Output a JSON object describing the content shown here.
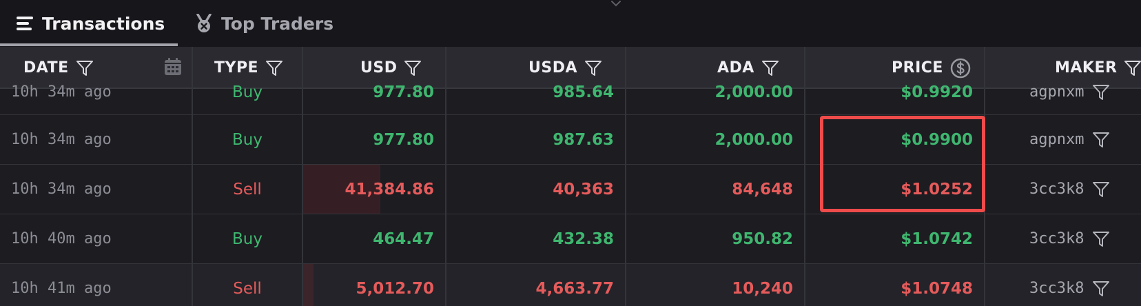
{
  "tabs": [
    {
      "label": "Transactions",
      "icon": "list-icon",
      "active": true
    },
    {
      "label": "Top Traders",
      "icon": "medal-icon",
      "active": false
    }
  ],
  "columns": {
    "date": "DATE",
    "type": "TYPE",
    "usd": "USD",
    "usda": "USDA",
    "ada": "ADA",
    "price": "PRICE",
    "maker": "MAKER"
  },
  "rows": [
    {
      "date": "10h 34m ago",
      "type": "Buy",
      "usd": "977.80",
      "usda": "985.64",
      "ada": "2,000.00",
      "price": "$0.9920",
      "maker": "agpnxm",
      "side": "buy"
    },
    {
      "date": "10h 34m ago",
      "type": "Buy",
      "usd": "977.80",
      "usda": "987.63",
      "ada": "2,000.00",
      "price": "$0.9900",
      "maker": "agpnxm",
      "side": "buy"
    },
    {
      "date": "10h 34m ago",
      "type": "Sell",
      "usd": "41,384.86",
      "usda": "40,363",
      "ada": "84,648",
      "price": "$1.0252",
      "maker": "3cc3k8",
      "side": "sell",
      "usd_bar_fraction": 0.54
    },
    {
      "date": "10h 40m ago",
      "type": "Buy",
      "usd": "464.47",
      "usda": "432.38",
      "ada": "950.82",
      "price": "$1.0742",
      "maker": "3cc3k8",
      "side": "buy"
    },
    {
      "date": "10h 41m ago",
      "type": "Sell",
      "usd": "5,012.70",
      "usda": "4,663.77",
      "ada": "10,240",
      "price": "$1.0748",
      "maker": "3cc3k8",
      "side": "sell",
      "usd_bar_fraction": 0.07
    }
  ],
  "colors": {
    "buy": "#3fb66f",
    "sell": "#e55b5b",
    "highlight": "#ee4b4b"
  }
}
